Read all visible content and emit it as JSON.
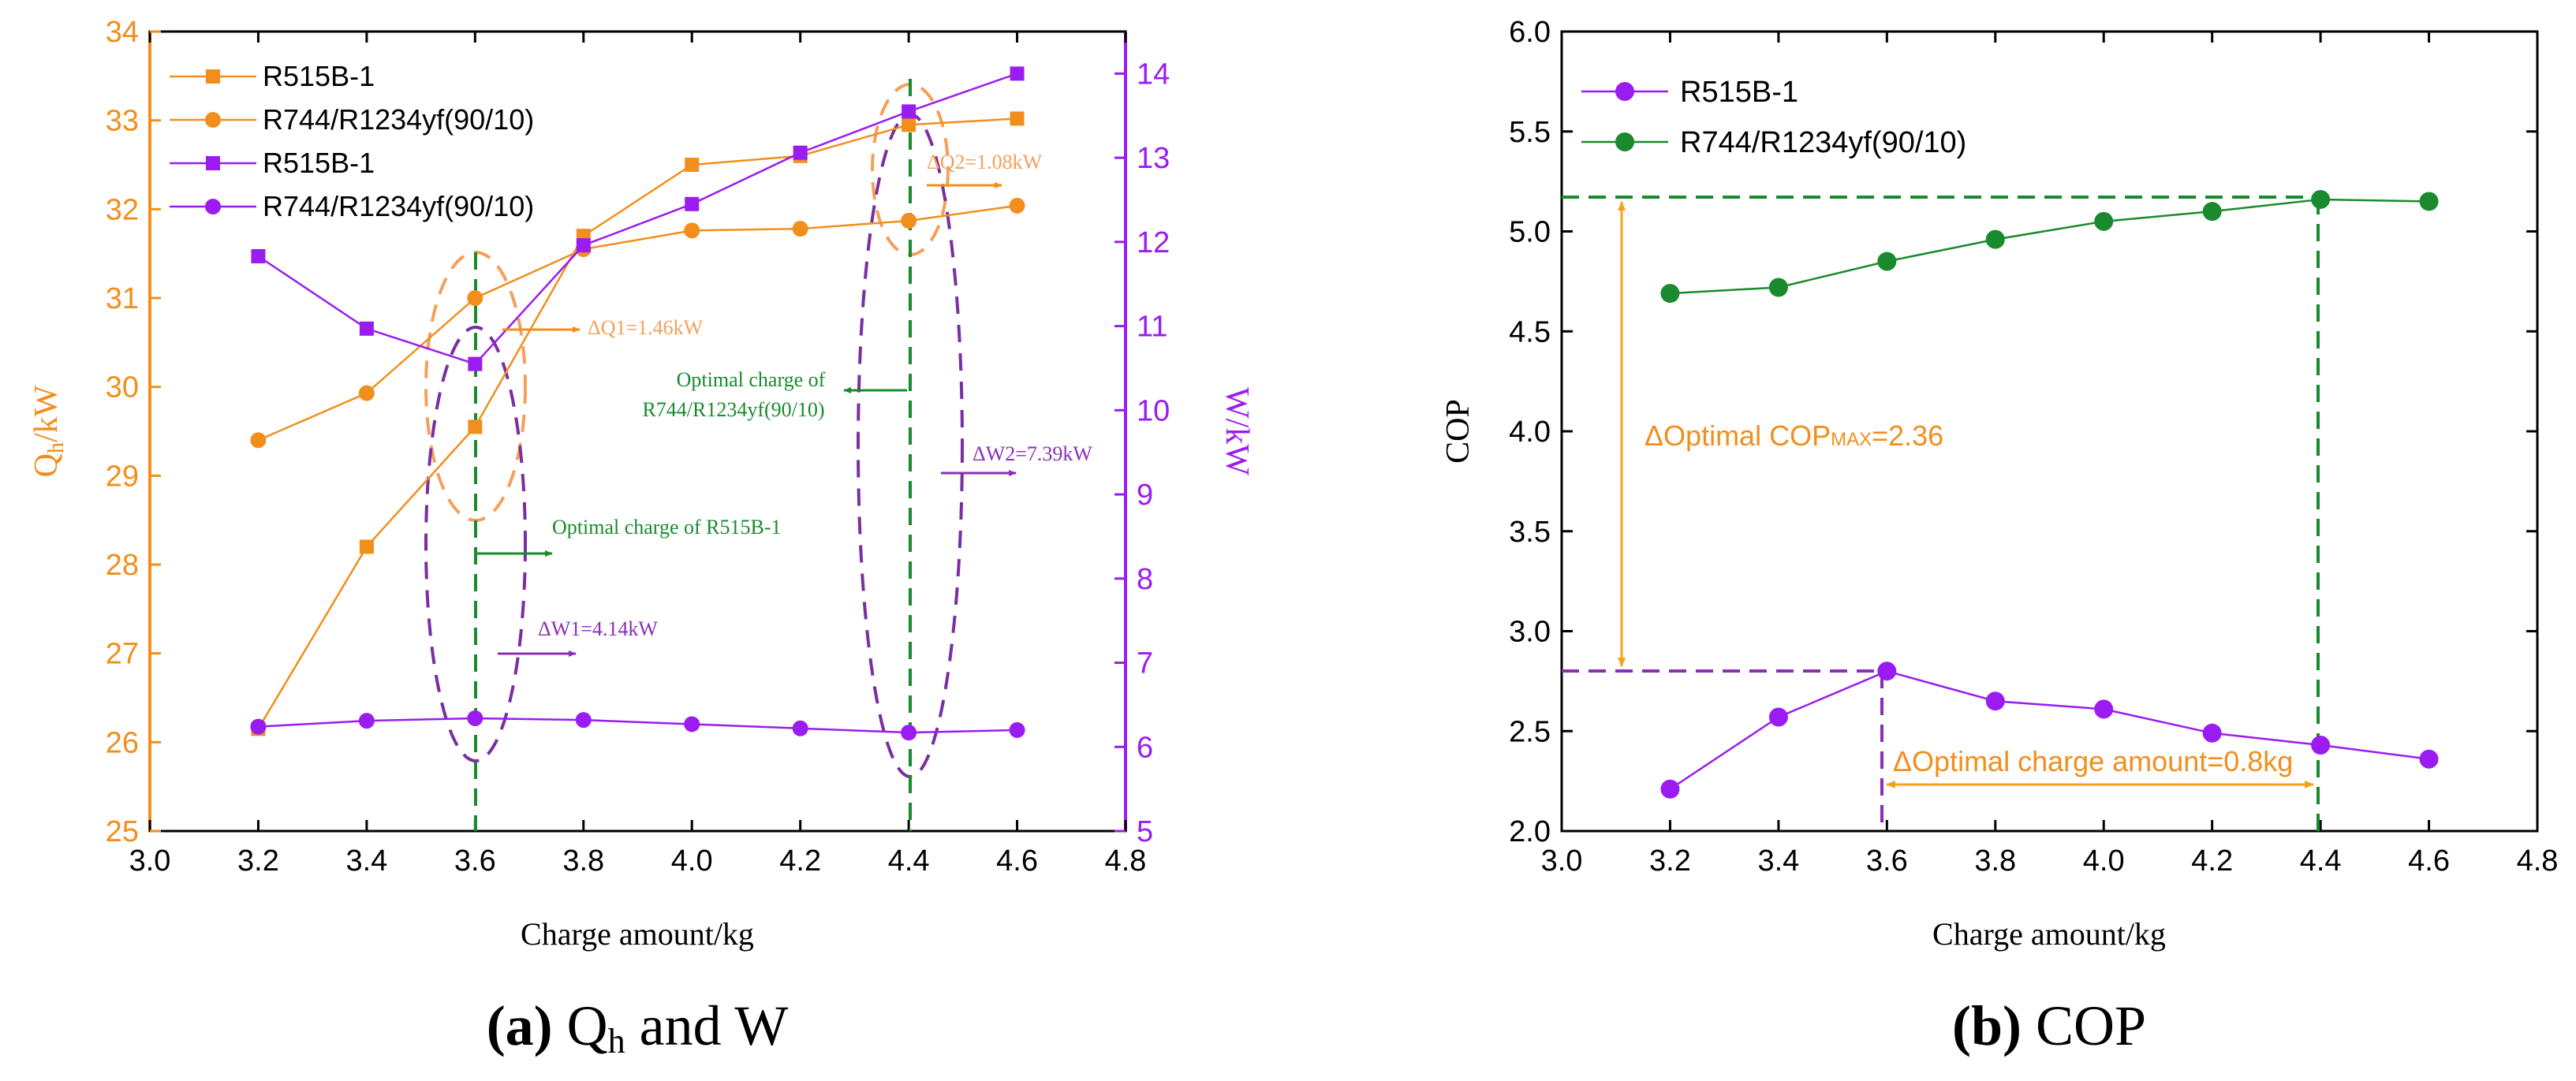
{
  "chart_data": [
    {
      "panel": "a",
      "type": "line",
      "xlabel": "Charge amount/kg",
      "ylabel_left": "Qh/kW",
      "ylabel_left_main": "Q",
      "ylabel_left_sub": "h",
      "ylabel_left_unit": "/kW",
      "ylabel_right": "W/kW",
      "xlim": [
        3.0,
        4.8
      ],
      "ylim_left": [
        25,
        34
      ],
      "ylim_right": [
        5,
        14.5
      ],
      "x_ticks": [
        "3.0",
        "3.2",
        "3.4",
        "3.6",
        "3.8",
        "4.0",
        "4.2",
        "4.4",
        "4.6",
        "4.8"
      ],
      "y_left_ticks": [
        "25",
        "26",
        "27",
        "28",
        "29",
        "30",
        "31",
        "32",
        "33",
        "34"
      ],
      "y_right_ticks": [
        "5",
        "6",
        "7",
        "8",
        "9",
        "10",
        "11",
        "12",
        "13",
        "14"
      ],
      "x": [
        3.2,
        3.4,
        3.6,
        3.8,
        4.0,
        4.2,
        4.4,
        4.6
      ],
      "series": [
        {
          "name": "R515B-1",
          "axis": "left",
          "marker": "square",
          "color": "#f28e1c",
          "values": [
            26.15,
            28.2,
            29.55,
            31.7,
            32.5,
            32.6,
            32.95,
            33.02
          ]
        },
        {
          "name": "R744/R1234yf(90/10)",
          "axis": "left",
          "marker": "circle",
          "color": "#f28e1c",
          "values": [
            29.4,
            29.93,
            31.0,
            31.55,
            31.76,
            31.78,
            31.87,
            32.04
          ]
        },
        {
          "name": "R515B-1",
          "axis": "right",
          "marker": "square",
          "color": "#9b1cf0",
          "values": [
            11.83,
            10.97,
            10.55,
            11.96,
            12.45,
            13.06,
            13.55,
            14.0
          ]
        },
        {
          "name": "R744/R1234yf(90/10)",
          "axis": "right",
          "marker": "circle",
          "color": "#9b1cf0",
          "values": [
            6.24,
            6.31,
            6.34,
            6.32,
            6.27,
            6.22,
            6.17,
            6.2
          ]
        }
      ],
      "annotations": {
        "dq1": "ΔQ1=1.46kW",
        "dq2": "ΔQ2=1.08kW",
        "dw1": "ΔW1=4.14kW",
        "dw2": "ΔW2=7.39kW",
        "opt_r744_line1": "Optimal charge of",
        "opt_r744_line2": "R744/R1234yf(90/10)",
        "opt_r515": "Optimal charge of R515B-1"
      },
      "caption": {
        "label": "(a)",
        "text_main": "Q",
        "text_sub": "h",
        "text_rest": " and W"
      }
    },
    {
      "panel": "b",
      "type": "line",
      "xlabel": "Charge amount/kg",
      "ylabel": "COP",
      "xlim": [
        3.0,
        4.8
      ],
      "ylim": [
        2.0,
        6.0
      ],
      "x_ticks": [
        "3.0",
        "3.2",
        "3.4",
        "3.6",
        "3.8",
        "4.0",
        "4.2",
        "4.4",
        "4.6",
        "4.8"
      ],
      "y_ticks": [
        "2.0",
        "2.5",
        "3.0",
        "3.5",
        "4.0",
        "4.5",
        "5.0",
        "5.5",
        "6.0"
      ],
      "x": [
        3.2,
        3.4,
        3.6,
        3.8,
        4.0,
        4.2,
        4.4,
        4.6
      ],
      "series": [
        {
          "name": "R515B-1",
          "marker": "circle",
          "color": "#9b1cf0",
          "values": [
            2.21,
            2.57,
            2.8,
            2.65,
            2.61,
            2.49,
            2.43,
            2.36
          ]
        },
        {
          "name": "R744/R1234yf(90/10)",
          "marker": "circle",
          "color": "#1a8a2e",
          "values": [
            4.69,
            4.72,
            4.85,
            4.96,
            5.05,
            5.1,
            5.16,
            5.15
          ]
        }
      ],
      "annotations": {
        "dcop_prefix": "ΔOptimal COP",
        "dcop_sub": "MAX",
        "dcop_suffix": "=2.36",
        "dcharge": "ΔOptimal charge amount=0.8kg"
      },
      "caption": {
        "label": "(b)",
        "text_rest": " COP"
      }
    }
  ],
  "colors": {
    "orange": "#f28e1c",
    "purple": "#9b1cf0",
    "green": "#1a8a2e",
    "dashed_green": "#1a8a2e"
  }
}
